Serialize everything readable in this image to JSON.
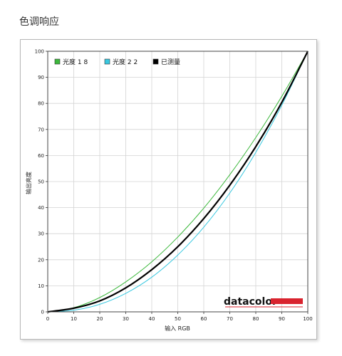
{
  "page": {
    "title": "色调响应"
  },
  "brand": {
    "name": "datacolor",
    "accent_color": "#d9232e"
  },
  "chart_data": {
    "type": "line",
    "title": "",
    "xlabel": "输入 RGB",
    "ylabel": "输出亮度",
    "xlim": [
      0,
      100
    ],
    "ylim": [
      0,
      100
    ],
    "x_ticks": [
      "0",
      "10",
      "20",
      "30",
      "40",
      "50",
      "60",
      "70",
      "80",
      "90",
      "100"
    ],
    "y_ticks": [
      "0",
      "10",
      "20",
      "30",
      "40",
      "50",
      "60",
      "70",
      "80",
      "90",
      "100"
    ],
    "grid": true,
    "legend_position": "top-left",
    "x": [
      0,
      10,
      20,
      30,
      40,
      50,
      60,
      70,
      80,
      90,
      100
    ],
    "series": [
      {
        "name": "光度 1 8",
        "color": "#3cb83c",
        "width": 1,
        "values": [
          0,
          1.6,
          5.5,
          11.5,
          19.2,
          28.7,
          39.8,
          52.6,
          66.9,
          82.7,
          100
        ]
      },
      {
        "name": "光度 2 2",
        "color": "#38c8e0",
        "width": 1,
        "values": [
          0,
          0.6,
          2.9,
          7.1,
          13.3,
          21.8,
          32.5,
          45.6,
          61.2,
          79.3,
          100
        ]
      },
      {
        "name": "已测量",
        "color": "#000000",
        "width": 2.2,
        "values": [
          0,
          1.4,
          4.2,
          9.2,
          16.2,
          25.0,
          35.8,
          48.6,
          63.4,
          80.4,
          100
        ]
      }
    ]
  }
}
